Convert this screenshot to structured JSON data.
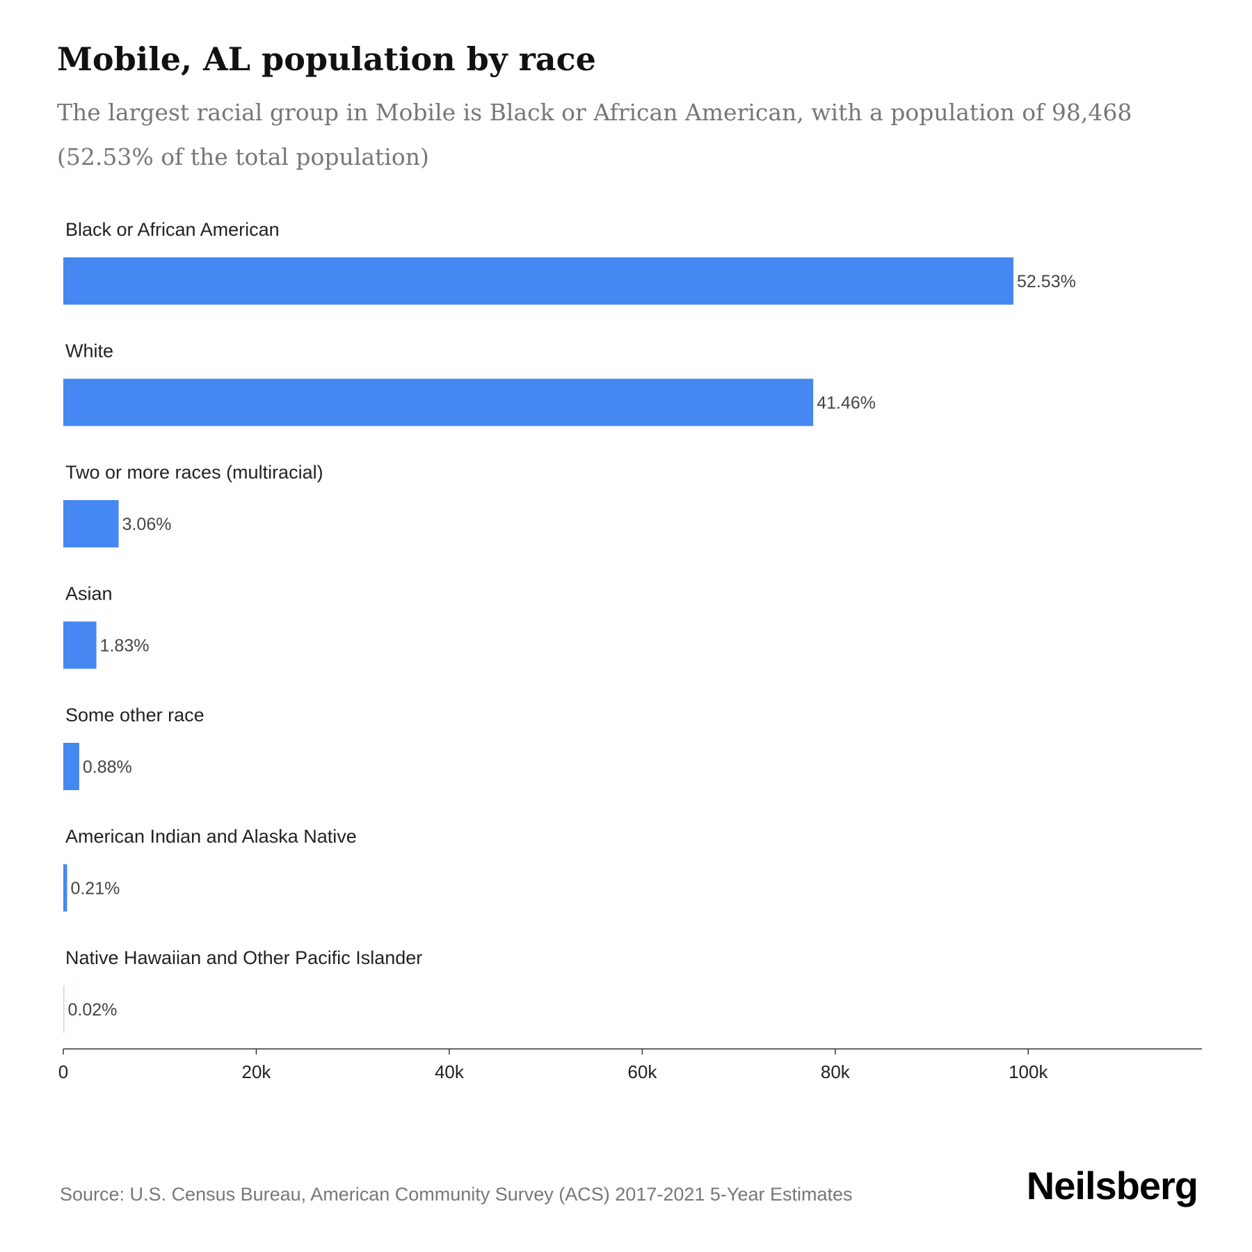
{
  "title": "Mobile, AL population by race",
  "subtitle": "The largest racial group in Mobile is Black or African American, with a population of 98,468 (52.53% of the total population)",
  "source": "Source: U.S. Census Bureau, American Community Survey (ACS) 2017-2021 5-Year Estimates",
  "brand": "Neilsberg",
  "colors": {
    "bar": "#4688F1",
    "axis": "#333333",
    "label": "#222222",
    "value_label": "#444444"
  },
  "chart_data": {
    "type": "bar",
    "orientation": "horizontal",
    "categories": [
      "Black or African American",
      "White",
      "Two or more races (multiracial)",
      "Asian",
      "Some other race",
      "American Indian and Alaska Native",
      "Native Hawaiian and Other Pacific Islander"
    ],
    "values": [
      98468,
      77720,
      5736,
      3430,
      1650,
      394,
      37
    ],
    "value_labels": [
      "52.53%",
      "41.46%",
      "3.06%",
      "1.83%",
      "0.88%",
      "0.21%",
      "0.02%"
    ],
    "xlim": [
      0,
      118000
    ],
    "x_ticks": [
      0,
      20000,
      40000,
      60000,
      80000,
      100000
    ],
    "x_tick_labels": [
      "0",
      "20k",
      "40k",
      "60k",
      "80k",
      "100k"
    ],
    "grid": false
  }
}
